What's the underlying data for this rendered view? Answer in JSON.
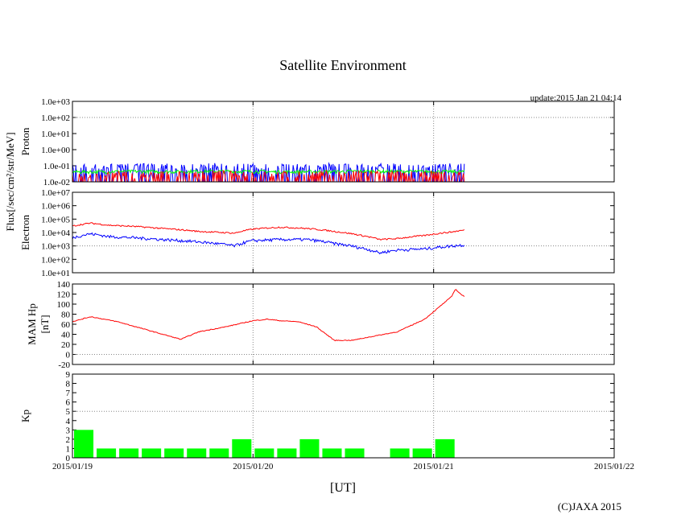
{
  "title": "Satellite Environment",
  "update": "update:2015 Jan 21 04:14",
  "copyright": "(C)JAXA 2015",
  "xlabel": "[UT]",
  "flux_label": "Flux[/sec/cm²/str/MeV]",
  "colors": {
    "red": "#ff0000",
    "blue": "#0000ff",
    "green": "#00ff00",
    "grid": "#888888"
  },
  "x_ticks": [
    "2015/01/19",
    "2015/01/20",
    "2015/01/21",
    "2015/01/22"
  ],
  "chart_data": [
    {
      "type": "line",
      "name": "proton-panel",
      "ylabel": "Proton",
      "yscale": "log",
      "ylim": [
        0.01,
        1000
      ],
      "yticks": [
        "1.0e-02",
        "1.0e-01",
        "1.0e+00",
        "1.0e+01",
        "1.0e+02",
        "1.0e+03"
      ],
      "xlim_days": [
        0,
        3
      ],
      "data_end_day": 2.17,
      "series": [
        {
          "color": "#0000ff",
          "values": [
            0.045,
            0.05,
            0.048,
            0.052,
            0.05,
            0.047,
            0.05,
            0.053,
            0.049,
            0.05
          ]
        },
        {
          "color": "#00ff00",
          "values": [
            0.04,
            0.042,
            0.041,
            0.043,
            0.042,
            0.04,
            0.041,
            0.043,
            0.042,
            0.041
          ]
        },
        {
          "color": "#ff0000",
          "values": [
            0.015,
            0.016,
            0.015,
            0.017,
            0.016,
            0.015,
            0.016,
            0.017,
            0.016,
            0.015
          ]
        }
      ]
    },
    {
      "type": "line",
      "name": "electron-panel",
      "ylabel": "Electron",
      "yscale": "log",
      "ylim": [
        10,
        10000000
      ],
      "yticks": [
        "1.0e+01",
        "1.0e+02",
        "1.0e+03",
        "1.0e+04",
        "1.0e+05",
        "1.0e+06",
        "1.0e+07"
      ],
      "xlim_days": [
        0,
        3
      ],
      "data_end_day": 2.17,
      "x": [
        0,
        0.1,
        0.2,
        0.35,
        0.5,
        0.7,
        0.9,
        1.0,
        1.15,
        1.3,
        1.45,
        1.6,
        1.7,
        1.8,
        1.95,
        2.1,
        2.17
      ],
      "series": [
        {
          "color": "#ff0000",
          "values": [
            30000,
            50000,
            35000,
            28000,
            20000,
            12000,
            9000,
            18000,
            25000,
            20000,
            12000,
            6000,
            3000,
            3500,
            6000,
            11000,
            15000
          ]
        },
        {
          "color": "#0000ff",
          "values": [
            4000,
            8000,
            5000,
            4000,
            3000,
            2000,
            1000,
            2500,
            3000,
            3000,
            1500,
            700,
            300,
            500,
            600,
            1000,
            1200
          ]
        }
      ]
    },
    {
      "type": "line",
      "name": "mam-panel",
      "ylabel": [
        "MAM Hp",
        "[nT]"
      ],
      "ylim": [
        -20,
        140
      ],
      "yticks": [
        "-20",
        "0",
        "20",
        "40",
        "60",
        "80",
        "100",
        "120",
        "140"
      ],
      "xlim_days": [
        0,
        3
      ],
      "data_end_day": 2.17,
      "x": [
        0,
        0.1,
        0.25,
        0.4,
        0.55,
        0.6,
        0.7,
        0.85,
        1.0,
        1.08,
        1.15,
        1.25,
        1.35,
        1.45,
        1.55,
        1.65,
        1.8,
        1.95,
        2.05,
        2.1,
        2.12,
        2.15,
        2.17
      ],
      "series": [
        {
          "color": "#ff0000",
          "values": [
            65,
            75,
            65,
            50,
            35,
            30,
            45,
            55,
            67,
            70,
            67,
            65,
            55,
            28,
            28,
            35,
            45,
            70,
            100,
            115,
            130,
            120,
            115
          ]
        }
      ]
    },
    {
      "type": "bar",
      "name": "kp-panel",
      "ylabel": "Kp",
      "ylim": [
        0,
        9
      ],
      "yticks": [
        "0",
        "1",
        "2",
        "3",
        "4",
        "5",
        "6",
        "7",
        "8",
        "9"
      ],
      "xlim_days": [
        0,
        3
      ],
      "bar_width_days": 0.125,
      "bar_color": "#00ff00",
      "values": [
        3,
        1,
        1,
        1,
        1,
        1,
        1,
        2,
        1,
        1,
        2,
        1,
        1,
        0,
        1,
        1,
        2
      ]
    }
  ]
}
